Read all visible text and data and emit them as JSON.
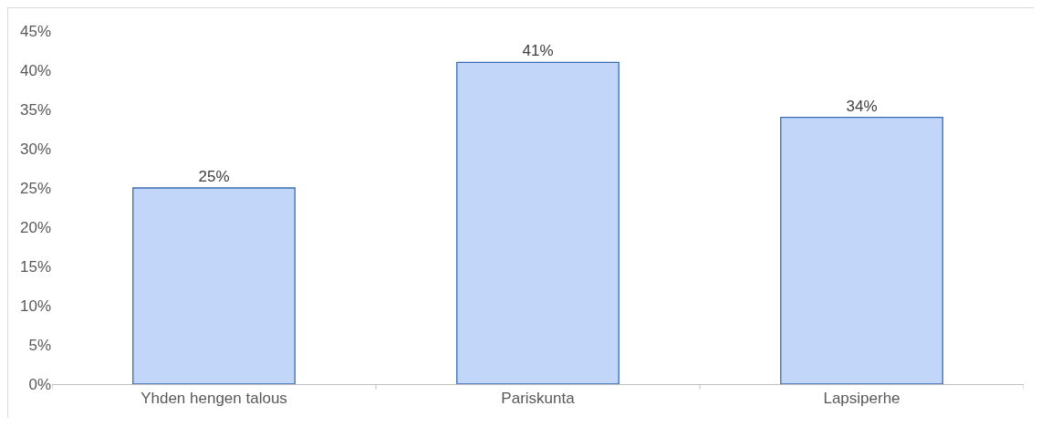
{
  "chart_data": {
    "type": "bar",
    "categories": [
      "Yhden hengen talous",
      "Pariskunta",
      "Lapsiperhe"
    ],
    "values": [
      25,
      41,
      34
    ],
    "value_labels": [
      "25%",
      "41%",
      "34%"
    ],
    "color": "#c2d6f9",
    "ylim": [
      0,
      45
    ],
    "yticks": [
      {
        "value": 0,
        "label": "0%"
      },
      {
        "value": 5,
        "label": "5%"
      },
      {
        "value": 10,
        "label": "10%"
      },
      {
        "value": 15,
        "label": "15%"
      },
      {
        "value": 20,
        "label": "20%"
      },
      {
        "value": 25,
        "label": "25%"
      },
      {
        "value": 30,
        "label": "30%"
      },
      {
        "value": 35,
        "label": "35%"
      },
      {
        "value": 40,
        "label": "40%"
      },
      {
        "value": 45,
        "label": "45%"
      }
    ],
    "grid": false
  }
}
